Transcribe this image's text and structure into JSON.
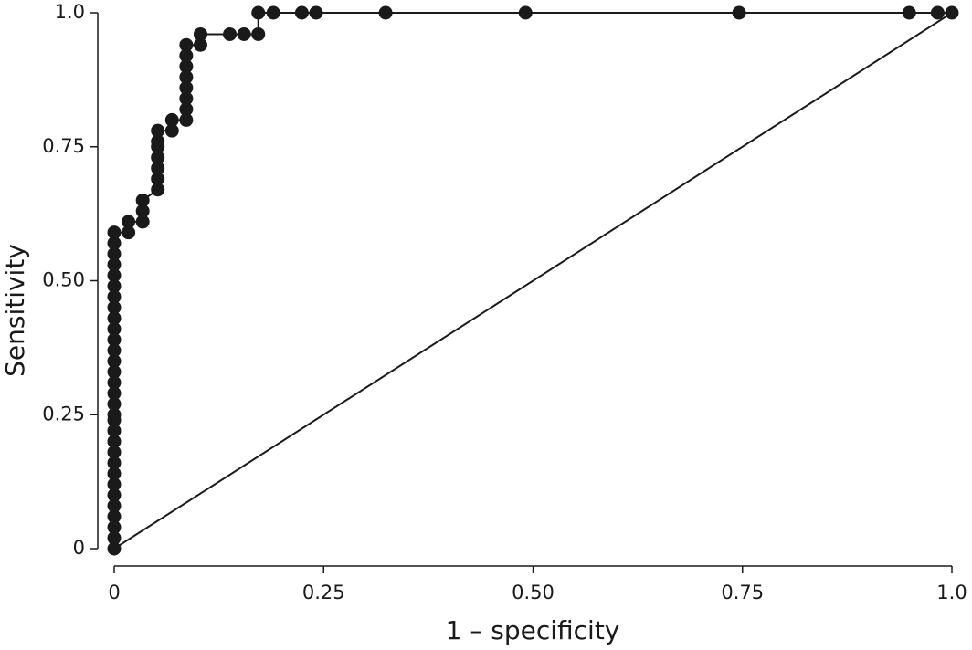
{
  "chart_data": {
    "type": "line",
    "x_label": "1 – specificity",
    "y_label": "Sensitivity",
    "xlim": [
      0,
      1
    ],
    "ylim": [
      0,
      1
    ],
    "xticks": [
      0,
      0.25,
      {
        "value": 0.5,
        "label": "0.50"
      },
      0.75,
      {
        "value": 1,
        "label": "1.0"
      }
    ],
    "yticks": [
      0,
      0.25,
      {
        "value": 0.5,
        "label": "0.50"
      },
      0.75,
      {
        "value": 1,
        "label": "1.0"
      }
    ],
    "series": [
      {
        "color": "#1a1a1a",
        "markers": true,
        "x": [
          0,
          0,
          0,
          0,
          0,
          0,
          0,
          0,
          0,
          0,
          0,
          0,
          0,
          0,
          0,
          0,
          0,
          0,
          0,
          0,
          0,
          0,
          0,
          0,
          0,
          0,
          0,
          0,
          0,
          0,
          0,
          0.017,
          0.017,
          0.034,
          0.034,
          0.034,
          0.052,
          0.052,
          0.052,
          0.052,
          0.052,
          0.052,
          0.052,
          0.069,
          0.069,
          0.086,
          0.086,
          0.086,
          0.086,
          0.086,
          0.086,
          0.086,
          0.086,
          0.103,
          0.103,
          0.138,
          0.155,
          0.172,
          0.172,
          0.19,
          0.224,
          0.241,
          0.324,
          0.491,
          0.746,
          0.949,
          0.983,
          1.0
        ],
        "values": [
          0,
          0.02,
          0.04,
          0.06,
          0.08,
          0.1,
          0.12,
          0.14,
          0.16,
          0.18,
          0.2,
          0.22,
          0.24,
          0.25,
          0.27,
          0.29,
          0.31,
          0.33,
          0.35,
          0.37,
          0.39,
          0.41,
          0.43,
          0.45,
          0.47,
          0.49,
          0.51,
          0.53,
          0.55,
          0.57,
          0.59,
          0.59,
          0.61,
          0.61,
          0.63,
          0.65,
          0.67,
          0.69,
          0.71,
          0.73,
          0.75,
          0.76,
          0.78,
          0.78,
          0.8,
          0.8,
          0.82,
          0.84,
          0.86,
          0.88,
          0.9,
          0.92,
          0.94,
          0.94,
          0.96,
          0.96,
          0.96,
          0.96,
          1.0,
          1.0,
          1.0,
          1.0,
          1.0,
          1.0,
          1.0,
          1.0,
          1.0,
          1.0
        ]
      },
      {
        "color": "#1a1a1a",
        "markers": false,
        "x": [
          0,
          1
        ],
        "values": [
          0,
          1
        ]
      }
    ]
  }
}
